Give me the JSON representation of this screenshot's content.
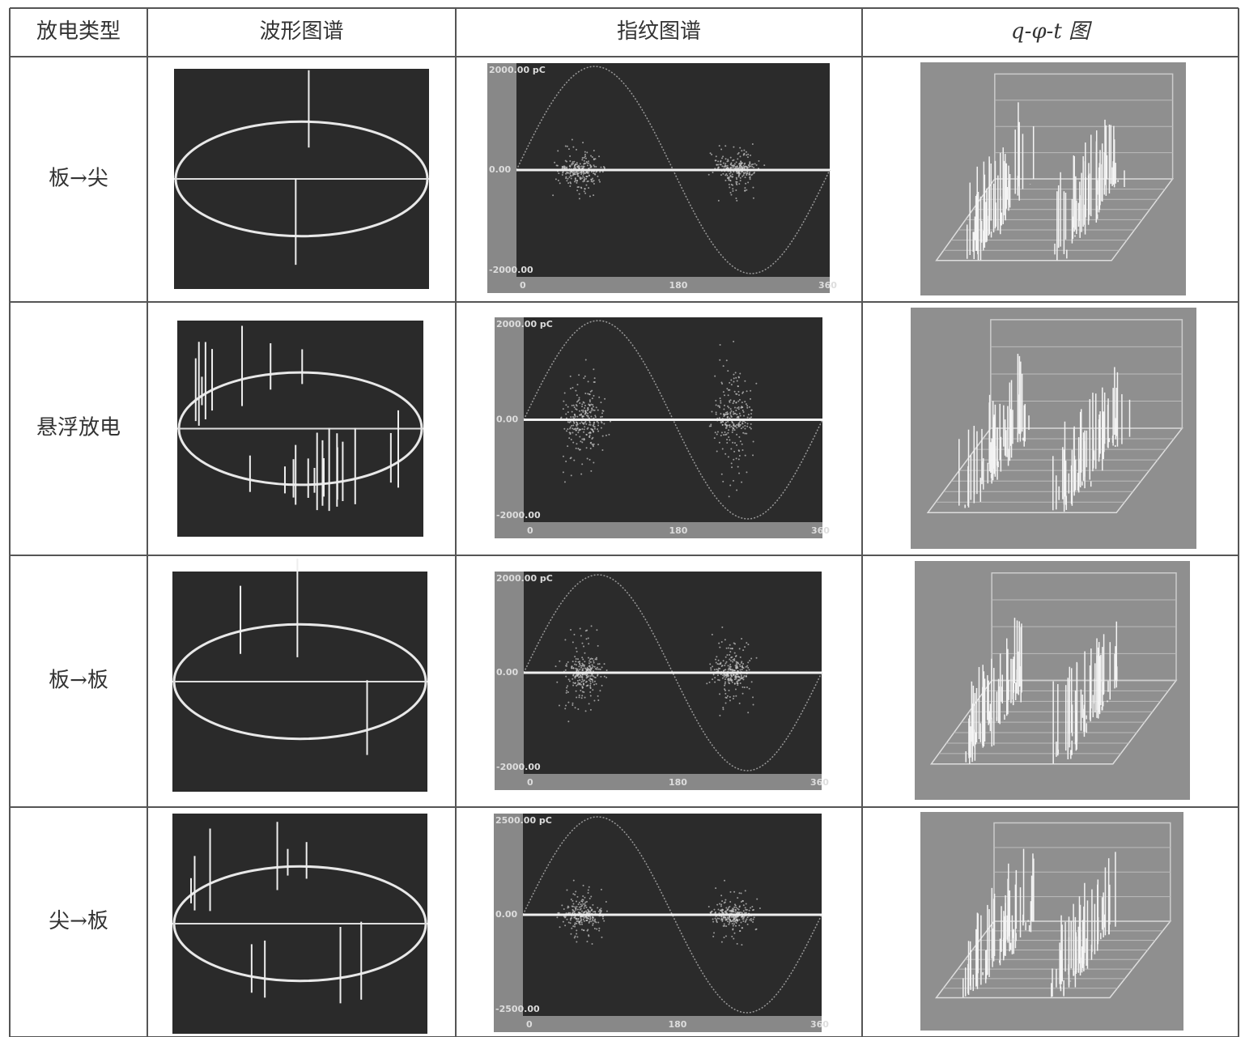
{
  "table": {
    "header": [
      "放电类型",
      "波形图谱",
      "指纹图谱",
      "q-φ-t 图"
    ],
    "rows": [
      {
        "type": "板→尖",
        "fingerprint": {
          "top": "2000.00 pC",
          "middle": "0.00",
          "bottom": "-2000.00",
          "x": [
            "0",
            "180",
            "360"
          ]
        }
      },
      {
        "type": "悬浮放电",
        "fingerprint": {
          "top": "2000.00 pC",
          "middle": "0.00",
          "bottom": "-2000.00",
          "x": [
            "0",
            "180",
            "360"
          ]
        }
      },
      {
        "type": "板→板",
        "fingerprint": {
          "top": "2000.00 pC",
          "middle": "0.00",
          "bottom": "-2000.00",
          "x": [
            "0",
            "180",
            "360"
          ]
        }
      },
      {
        "type": "尖→板",
        "fingerprint": {
          "top": "2500.00 pC",
          "middle": "0.00",
          "bottom": "-2500.00",
          "x": [
            "0",
            "180",
            "360"
          ]
        }
      }
    ]
  }
}
